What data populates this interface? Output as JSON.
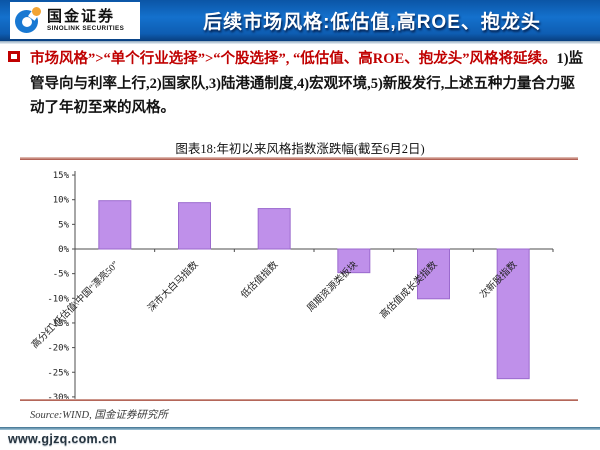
{
  "header": {
    "title": "后续市场风格:低估值,高ROE、抱龙头",
    "logo": {
      "name_cn": "国金证券",
      "name_en": "SINOLINK SECURITIES"
    }
  },
  "summary": {
    "red_text": "市场风格”>“单个行业选择”>“个股选择”, “低估值、高ROE、抱龙头”风格将延续。",
    "black_text": "1)监管导向与利率上行,2)国家队,3)陆港通制度,4)宏观环境,5)新股发行,上述五种力量合力驱动了年初至来的风格。"
  },
  "chart": {
    "title": "图表18:年初以来风格指数涨跌幅(截至6月2日)",
    "source": "Source:WIND, 国金证券研究所"
  },
  "chart_data": {
    "type": "bar",
    "title": "图表18:年初以来风格指数涨跌幅(截至6月2日)",
    "categories": [
      "高分红\\低估值\\中国“漂亮50”",
      "深市大白马指数",
      "低估值指数",
      "周期资源类板块",
      "高估值成长类指数",
      "次新股指数"
    ],
    "values": [
      9.8,
      9.4,
      8.2,
      -4.8,
      -10.1,
      -26.3
    ],
    "unit": "%",
    "xlabel": "",
    "ylabel": "",
    "ylim": [
      -30,
      15
    ],
    "ytick_step": 5,
    "grid": false,
    "legend": false,
    "bar_fill": "#bf90ea",
    "bar_stroke": "#9b6ace",
    "axis_color": "#4d4d4d",
    "tick_label_color": "#222222"
  },
  "footer": {
    "url": "www.gjzq.com.cn"
  },
  "colors": {
    "header_blue": "#1471cd",
    "accent_red": "#c00000",
    "rule_red": "#a84e41",
    "footer_steel": "#3d6f8e"
  }
}
